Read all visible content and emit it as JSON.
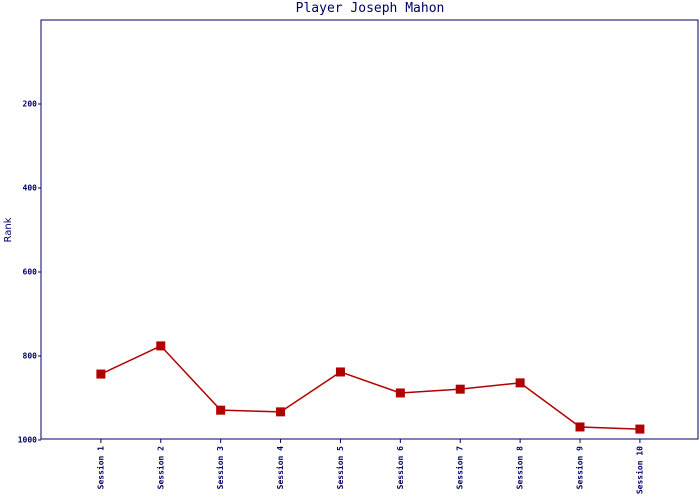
{
  "chart_data": {
    "type": "line",
    "title": "Player Joseph Mahon",
    "y_label": "Rank",
    "categories": [
      "Session 1",
      "Session 2",
      "Session 3",
      "Session 4",
      "Session 5",
      "Session 6",
      "Session 7",
      "Session 8",
      "Session 9",
      "Session 10"
    ],
    "series": [
      {
        "name": "Rank",
        "color": "#b00000",
        "values": [
          843,
          776,
          929,
          933,
          838,
          888,
          879,
          864,
          969,
          974
        ]
      }
    ],
    "ylim": [
      0,
      1000
    ],
    "y_inverted": true,
    "yticks": [
      200,
      400,
      600,
      800,
      1000
    ],
    "grid": false
  }
}
